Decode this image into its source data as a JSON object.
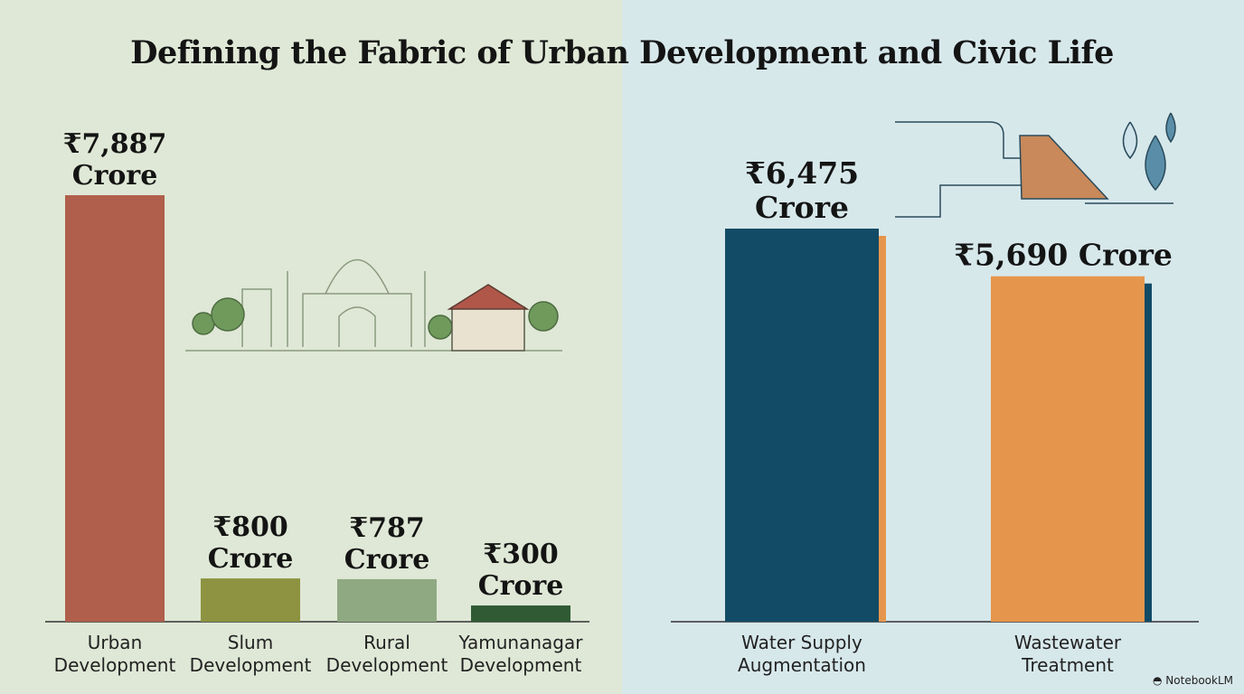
{
  "chart_data": [
    {
      "type": "bar",
      "title": "Defining the Fabric of Urban Development and Civic Life",
      "categories": [
        [
          "Urban",
          "Development"
        ],
        [
          "Slum",
          "Development"
        ],
        [
          "Rural",
          "Development"
        ],
        [
          "Yamunanagar",
          "Development"
        ]
      ],
      "values": [
        7887,
        800,
        787,
        300
      ],
      "data_labels": [
        [
          "₹7,887",
          "Crore"
        ],
        [
          "₹800",
          "Crore"
        ],
        [
          "₹787",
          "Crore"
        ],
        [
          "₹300",
          "Crore"
        ]
      ],
      "unit": "₹ Crore",
      "colors": [
        "#b05f4c",
        "#8d9340",
        "#8fa982",
        "#2f5a34"
      ]
    },
    {
      "type": "bar",
      "categories": [
        [
          "Water Supply",
          "Augmentation"
        ],
        [
          "Wastewater",
          "Treatment"
        ]
      ],
      "values": [
        6475,
        5690
      ],
      "data_labels": [
        [
          "₹6,475",
          "Crore"
        ],
        [
          "₹5,690 Crore"
        ]
      ],
      "unit": "₹ Crore",
      "colors": [
        "#124b66",
        "#e6964c"
      ],
      "shadow_colors": [
        "#e6964c",
        "#124b66"
      ]
    }
  ],
  "title": "Defining the Fabric of Urban Development and Civic Life",
  "brand": "NotebookLM"
}
